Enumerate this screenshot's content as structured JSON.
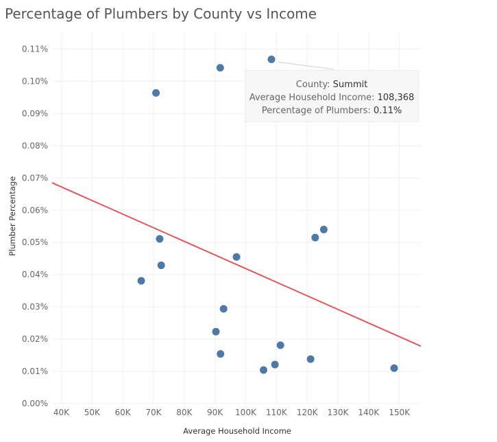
{
  "chart_data": {
    "type": "scatter",
    "title": "Percentage of Plumbers by County vs Income",
    "xlabel": "Average Household Income",
    "ylabel": "Plumber Percentage",
    "xlim": [
      37000,
      157000
    ],
    "ylim": [
      0,
      0.00115
    ],
    "x_ticks": [
      {
        "value": 40000,
        "label": "40K"
      },
      {
        "value": 50000,
        "label": "50K"
      },
      {
        "value": 60000,
        "label": "60K"
      },
      {
        "value": 70000,
        "label": "70K"
      },
      {
        "value": 80000,
        "label": "80K"
      },
      {
        "value": 90000,
        "label": "90K"
      },
      {
        "value": 100000,
        "label": "100K"
      },
      {
        "value": 110000,
        "label": "110K"
      },
      {
        "value": 120000,
        "label": "120K"
      },
      {
        "value": 130000,
        "label": "130K"
      },
      {
        "value": 140000,
        "label": "140K"
      },
      {
        "value": 150000,
        "label": "150K"
      }
    ],
    "y_ticks": [
      {
        "value": 0,
        "label": "0.00%"
      },
      {
        "value": 0.0001,
        "label": "0.01%"
      },
      {
        "value": 0.0002,
        "label": "0.02%"
      },
      {
        "value": 0.0003,
        "label": "0.03%"
      },
      {
        "value": 0.0004,
        "label": "0.04%"
      },
      {
        "value": 0.0005,
        "label": "0.05%"
      },
      {
        "value": 0.0006,
        "label": "0.06%"
      },
      {
        "value": 0.0007,
        "label": "0.07%"
      },
      {
        "value": 0.0008,
        "label": "0.08%"
      },
      {
        "value": 0.0009,
        "label": "0.09%"
      },
      {
        "value": 0.001,
        "label": "0.10%"
      },
      {
        "value": 0.0011,
        "label": "0.11%"
      }
    ],
    "grid": true,
    "points": [
      {
        "x": 108368,
        "y": 0.001068
      },
      {
        "x": 91700,
        "y": 0.001042
      },
      {
        "x": 70800,
        "y": 0.000964
      },
      {
        "x": 125400,
        "y": 0.00054
      },
      {
        "x": 122600,
        "y": 0.000515
      },
      {
        "x": 72000,
        "y": 0.000511
      },
      {
        "x": 97000,
        "y": 0.000455
      },
      {
        "x": 72500,
        "y": 0.000429
      },
      {
        "x": 66000,
        "y": 0.000381
      },
      {
        "x": 92800,
        "y": 0.000294
      },
      {
        "x": 90300,
        "y": 0.000223
      },
      {
        "x": 111300,
        "y": 0.000181
      },
      {
        "x": 91800,
        "y": 0.000154
      },
      {
        "x": 121100,
        "y": 0.000138
      },
      {
        "x": 109500,
        "y": 0.000121
      },
      {
        "x": 148300,
        "y": 0.00011
      },
      {
        "x": 105800,
        "y": 0.000104
      }
    ],
    "trend_line": {
      "x": [
        37000,
        157000
      ],
      "y": [
        0.000685,
        0.000178
      ]
    },
    "colors": {
      "points": "#4e79a7",
      "trend": "#e15759",
      "grid": "#efefef"
    },
    "tooltip": {
      "point_index": 0,
      "rows": [
        {
          "label": "County:",
          "value": "Summit"
        },
        {
          "label": "Average Household Income:",
          "value": "108,368"
        },
        {
          "label": "Percentage of Plumbers:",
          "value": "0.11%"
        }
      ]
    }
  }
}
